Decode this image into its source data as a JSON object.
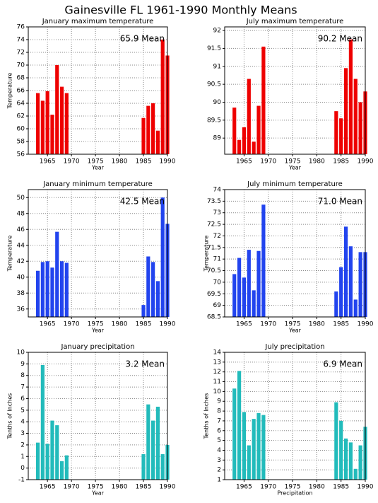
{
  "title": "Gainesville FL  1961-1990 Monthly Means",
  "chart_data": [
    {
      "type": "bar",
      "title": "January maximum temperature",
      "annotation": "65.9  Mean",
      "xlabel": "Year",
      "ylabel": "Temperature",
      "color": "#ee0000",
      "grid": true,
      "x": [
        1963,
        1964,
        1965,
        1966,
        1967,
        1968,
        1969,
        1985,
        1986,
        1987,
        1988,
        1989,
        1990
      ],
      "values": [
        65.6,
        64.4,
        65.9,
        62.2,
        70.0,
        66.6,
        65.6,
        61.7,
        63.6,
        64.0,
        59.7,
        74.0,
        71.5
      ],
      "xlim": [
        1961,
        1990
      ],
      "xticks": [
        1965,
        1970,
        1975,
        1980,
        1985,
        1990
      ],
      "ylim": [
        56,
        76
      ],
      "yticks": [
        56,
        58,
        60,
        62,
        64,
        66,
        68,
        70,
        72,
        74,
        76
      ]
    },
    {
      "type": "bar",
      "title": "July maximum temperature",
      "annotation": "90.2  Mean",
      "xlabel": "Year",
      "color": "#ee0000",
      "grid": true,
      "x": [
        1963,
        1964,
        1965,
        1966,
        1967,
        1968,
        1969,
        1984,
        1985,
        1986,
        1987,
        1988,
        1989,
        1990
      ],
      "values": [
        89.85,
        88.95,
        89.3,
        90.65,
        88.9,
        89.9,
        91.55,
        89.75,
        89.55,
        90.95,
        91.75,
        90.65,
        90.0,
        90.3
      ],
      "xlim": [
        1961,
        1990
      ],
      "xticks": [
        1965,
        1970,
        1975,
        1980,
        1985,
        1990
      ],
      "ylim": [
        88.55,
        92.1
      ],
      "yticks": [
        89,
        89.5,
        90,
        90.5,
        91,
        91.5,
        92
      ]
    },
    {
      "type": "bar",
      "title": "January minimum temperature",
      "annotation": "42.5  Mean",
      "xlabel": "Year",
      "ylabel": "Temperature",
      "color": "#2244ee",
      "grid": true,
      "x": [
        1963,
        1964,
        1965,
        1966,
        1967,
        1968,
        1969,
        1985,
        1986,
        1987,
        1988,
        1989,
        1990
      ],
      "values": [
        40.8,
        41.9,
        42.0,
        41.2,
        45.7,
        42.0,
        41.8,
        36.5,
        42.6,
        41.9,
        39.5,
        50.0,
        46.7
      ],
      "xlim": [
        1961,
        1990
      ],
      "xticks": [
        1965,
        1970,
        1975,
        1980,
        1985,
        1990
      ],
      "ylim": [
        35,
        51
      ],
      "yticks": [
        36,
        38,
        40,
        42,
        44,
        46,
        48,
        50
      ]
    },
    {
      "type": "bar",
      "title": "July minimum temperature",
      "annotation": "71.0  Mean",
      "xlabel": "Year",
      "ylabel": "Temperature",
      "color": "#2244ee",
      "grid": true,
      "x": [
        1963,
        1964,
        1965,
        1966,
        1967,
        1968,
        1969,
        1984,
        1985,
        1986,
        1987,
        1988,
        1989,
        1990
      ],
      "values": [
        70.35,
        71.05,
        70.2,
        71.4,
        69.65,
        71.35,
        73.35,
        69.6,
        70.65,
        72.4,
        71.55,
        69.25,
        71.3,
        71.3
      ],
      "xlim": [
        1961,
        1990
      ],
      "xticks": [
        1965,
        1970,
        1975,
        1980,
        1985,
        1990
      ],
      "ylim": [
        68.5,
        74
      ],
      "yticks": [
        68.5,
        69,
        69.5,
        70,
        70.5,
        71,
        71.5,
        72,
        72.5,
        73,
        73.5,
        74
      ]
    },
    {
      "type": "bar",
      "title": "January precipitation",
      "annotation": "3.2  Mean",
      "xlabel": "Year",
      "ylabel": "Tenths of Inches",
      "color": "#22bbbb",
      "grid": true,
      "x": [
        1963,
        1964,
        1965,
        1966,
        1967,
        1968,
        1969,
        1985,
        1986,
        1987,
        1988,
        1989,
        1990
      ],
      "values": [
        2.2,
        8.9,
        2.1,
        4.1,
        3.7,
        0.6,
        1.1,
        1.2,
        5.5,
        4.1,
        5.3,
        1.2,
        2.0
      ],
      "xlim": [
        1961,
        1990
      ],
      "xticks": [
        1965,
        1970,
        1975,
        1980,
        1985,
        1990
      ],
      "ylim": [
        -1,
        10
      ],
      "yticks": [
        -1,
        0,
        1,
        2,
        3,
        4,
        5,
        6,
        7,
        8,
        9,
        10
      ]
    },
    {
      "type": "bar",
      "title": "July precipitation",
      "annotation": "6.9  Mean",
      "xlabel": "Precipitation",
      "ylabel": "Tenths of Inches",
      "color": "#22bbbb",
      "grid": true,
      "x": [
        1963,
        1964,
        1965,
        1966,
        1967,
        1968,
        1969,
        1984,
        1985,
        1986,
        1987,
        1988,
        1989,
        1990
      ],
      "values": [
        10.3,
        12.1,
        7.9,
        4.5,
        7.2,
        7.8,
        7.6,
        8.9,
        7.0,
        5.2,
        4.8,
        2.1,
        4.5,
        6.4
      ],
      "xlim": [
        1961,
        1990
      ],
      "xticks": [
        1965,
        1970,
        1975,
        1980,
        1985,
        1990
      ],
      "ylim": [
        1,
        14
      ],
      "yticks": [
        1,
        2,
        3,
        4,
        5,
        6,
        7,
        8,
        9,
        10,
        11,
        12,
        13,
        14
      ]
    }
  ]
}
